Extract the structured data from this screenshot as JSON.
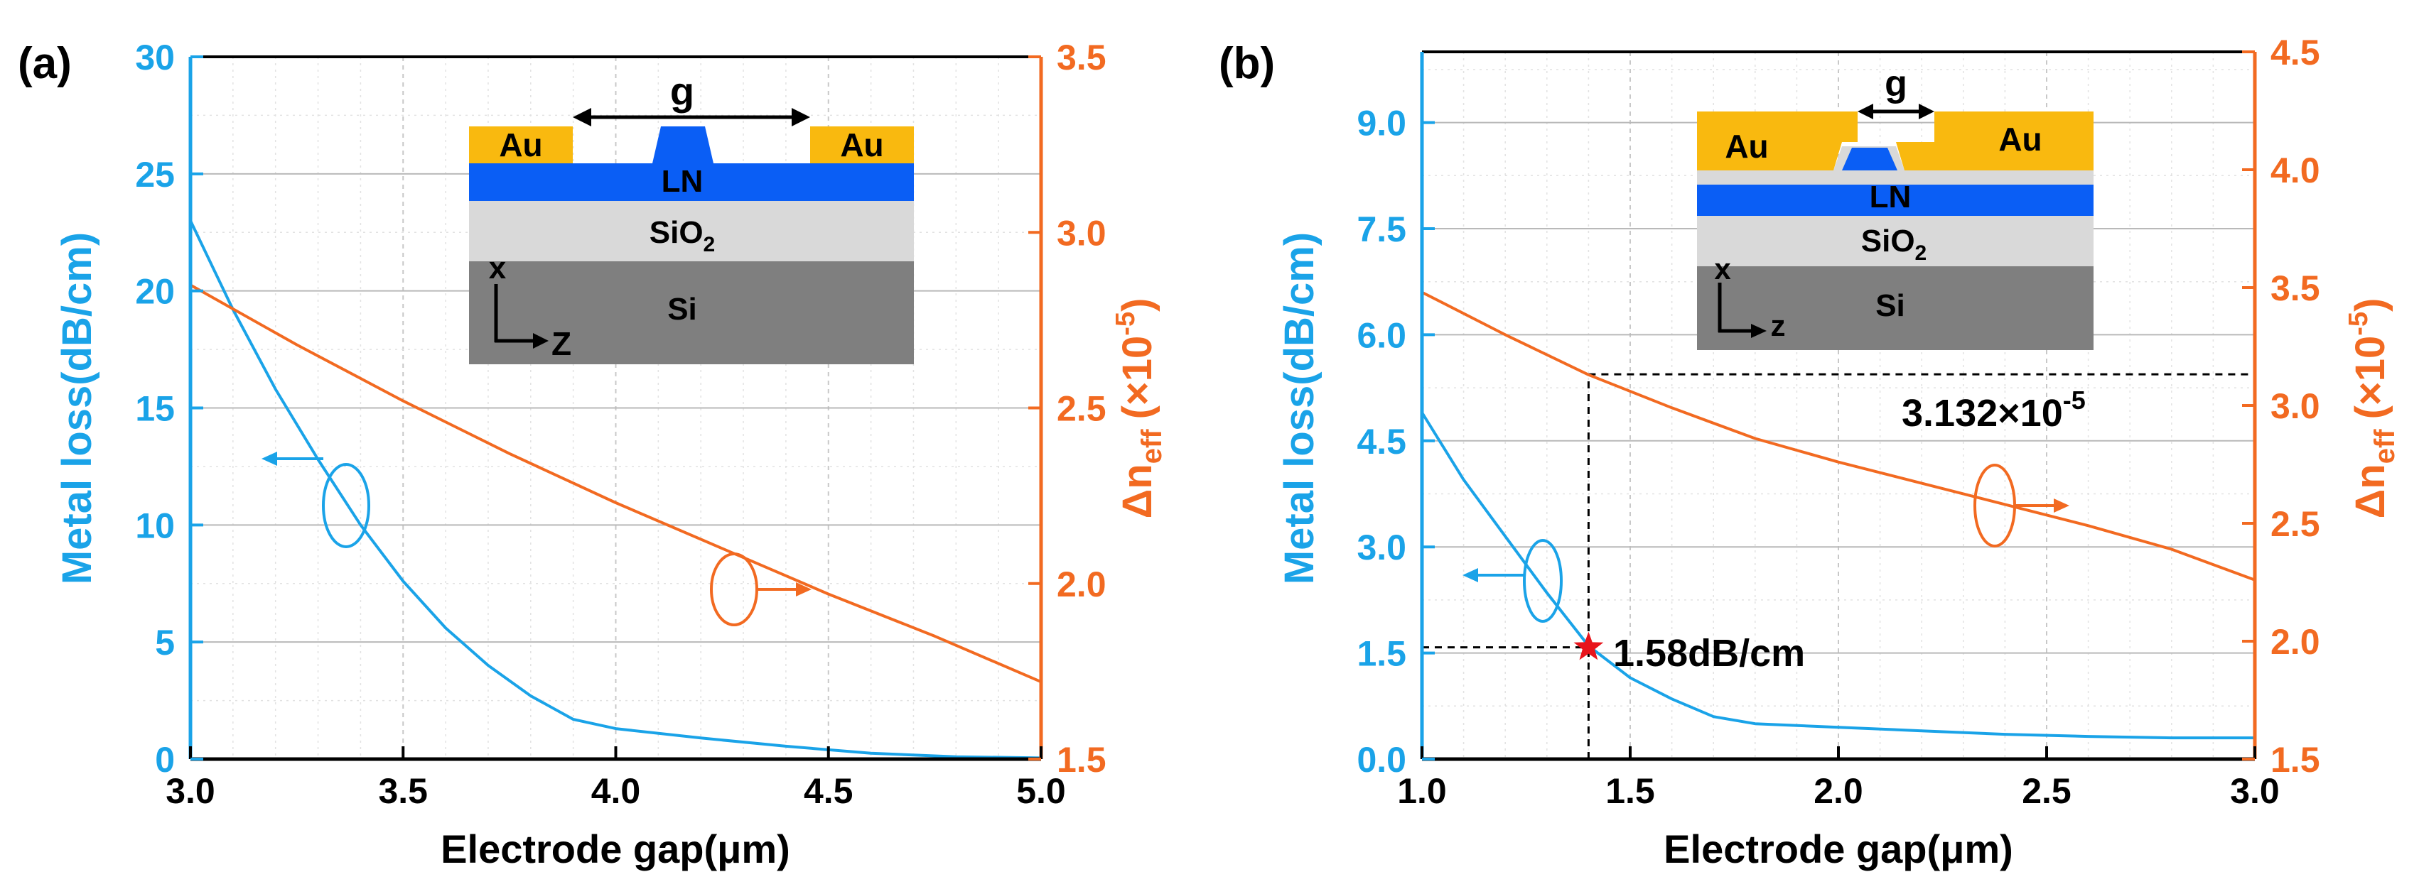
{
  "chart_data": [
    {
      "panel": "(a)",
      "type": "line",
      "xlabel": "Electrode gap(μm)",
      "ylabel_left": "Metal loss(dB/cm)",
      "ylabel_right_main": "Δn",
      "ylabel_right_sub": "eff",
      "ylabel_right_unit": "(×10",
      "ylabel_right_exp": "-5",
      "ylabel_right_close": ")",
      "xlim": [
        3.0,
        5.0
      ],
      "ylim_left": [
        0,
        30
      ],
      "ylim_right": [
        1.5,
        3.5
      ],
      "xticks": [
        "3.0",
        "3.5",
        "4.0",
        "4.5",
        "5.0"
      ],
      "yticks_left": [
        "0",
        "5",
        "10",
        "15",
        "20",
        "25",
        "30"
      ],
      "yticks_right": [
        "1.5",
        "2.0",
        "2.5",
        "3.0",
        "3.5"
      ],
      "series": [
        {
          "name": "Metal loss",
          "axis": "left",
          "color": "#1aa3e8",
          "x": [
            3.0,
            3.1,
            3.2,
            3.3,
            3.4,
            3.5,
            3.6,
            3.7,
            3.8,
            3.9,
            4.0,
            4.2,
            4.4,
            4.6,
            4.8,
            5.0
          ],
          "y": [
            23.0,
            19.2,
            15.8,
            12.8,
            10.0,
            7.6,
            5.6,
            4.0,
            2.7,
            1.7,
            1.3,
            0.9,
            0.55,
            0.25,
            0.1,
            0.05
          ]
        },
        {
          "name": "Δn_eff",
          "axis": "right",
          "color": "#f26a21",
          "x": [
            3.0,
            3.25,
            3.5,
            3.75,
            4.0,
            4.25,
            4.5,
            4.75,
            5.0
          ],
          "y": [
            2.85,
            2.68,
            2.52,
            2.37,
            2.23,
            2.1,
            1.97,
            1.85,
            1.72
          ]
        }
      ],
      "inset": {
        "labels": {
          "gap": "g",
          "metal_left": "Au",
          "metal_right": "Au",
          "core": "LN",
          "cladding": "SiO",
          "cladding_sub": "2",
          "substrate": "Si",
          "axis_x": "x",
          "axis_z": "Z"
        }
      }
    },
    {
      "panel": "(b)",
      "type": "line",
      "xlabel": "Electrode gap(μm)",
      "ylabel_left": "Metal loss(dB/cm)",
      "ylabel_right_main": "Δn",
      "ylabel_right_sub": "eff",
      "ylabel_right_unit": "(×10",
      "ylabel_right_exp": "-5",
      "ylabel_right_close": ")",
      "xlim": [
        1.0,
        3.0
      ],
      "ylim_left": [
        0,
        10
      ],
      "ylim_right": [
        1.5,
        4.5
      ],
      "xticks": [
        "1.0",
        "1.5",
        "2.0",
        "2.5",
        "3.0"
      ],
      "yticks_left": [
        "0.0",
        "1.5",
        "3.0",
        "4.5",
        "6.0",
        "7.5",
        "9.0"
      ],
      "yticks_right": [
        "1.5",
        "2.0",
        "2.5",
        "3.0",
        "3.5",
        "4.0",
        "4.5"
      ],
      "series": [
        {
          "name": "Metal loss",
          "axis": "left",
          "color": "#1aa3e8",
          "x": [
            1.0,
            1.1,
            1.2,
            1.3,
            1.4,
            1.5,
            1.6,
            1.7,
            1.8,
            2.0,
            2.2,
            2.4,
            2.6,
            2.8,
            3.0
          ],
          "y": [
            4.9,
            3.95,
            3.15,
            2.35,
            1.6,
            1.15,
            0.85,
            0.6,
            0.5,
            0.45,
            0.4,
            0.35,
            0.32,
            0.3,
            0.3
          ]
        },
        {
          "name": "Δn_eff",
          "axis": "right",
          "color": "#f26a21",
          "x": [
            1.0,
            1.2,
            1.4,
            1.6,
            1.8,
            2.0,
            2.2,
            2.4,
            2.6,
            2.8,
            3.0
          ],
          "y": [
            3.48,
            3.3,
            3.13,
            2.99,
            2.86,
            2.76,
            2.67,
            2.58,
            2.49,
            2.39,
            2.26
          ]
        }
      ],
      "marker": {
        "x": 1.4,
        "y": 1.58,
        "label": "1.58dB/cm"
      },
      "annotation_right": {
        "main": "3.132×10",
        "exp": "-5",
        "value": 3.132
      },
      "inset": {
        "labels": {
          "gap": "g",
          "metal_left": "Au",
          "metal_right": "Au",
          "core": "LN",
          "cladding": "SiO",
          "cladding_sub": "2",
          "substrate": "Si",
          "axis_x": "x",
          "axis_z": "z"
        }
      }
    }
  ],
  "colors": {
    "blue": "#1aa3e8",
    "orange": "#f26a21",
    "gold": "#f9b90f",
    "ln_blue": "#0a5ef5",
    "sio2": "#d9d9d9",
    "si": "#7f7f7f"
  }
}
